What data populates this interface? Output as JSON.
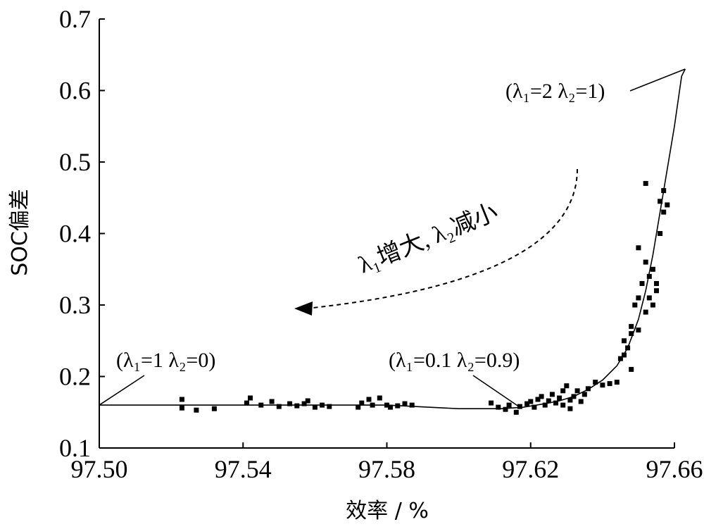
{
  "chart_data": {
    "type": "scatter",
    "xlabel": "效率 / %",
    "ylabel": "SOC偏差",
    "xlim": [
      97.5,
      97.66
    ],
    "ylim": [
      0.1,
      0.7
    ],
    "xticks": [
      "97.50",
      "97.54",
      "97.58",
      "97.62",
      "97.66"
    ],
    "xtick_values": [
      97.5,
      97.54,
      97.58,
      97.62,
      97.66
    ],
    "yticks": [
      "0.1",
      "0.2",
      "0.3",
      "0.4",
      "0.5",
      "0.6",
      "0.7"
    ],
    "ytick_values": [
      0.1,
      0.2,
      0.3,
      0.4,
      0.5,
      0.6,
      0.7
    ],
    "grid": false,
    "series": [
      {
        "kind": "points",
        "points": [
          [
            97.523,
            0.168
          ],
          [
            97.523,
            0.156
          ],
          [
            97.527,
            0.153
          ],
          [
            97.532,
            0.155
          ],
          [
            97.541,
            0.163
          ],
          [
            97.542,
            0.17
          ],
          [
            97.545,
            0.16
          ],
          [
            97.548,
            0.165
          ],
          [
            97.55,
            0.158
          ],
          [
            97.553,
            0.162
          ],
          [
            97.555,
            0.159
          ],
          [
            97.557,
            0.162
          ],
          [
            97.558,
            0.166
          ],
          [
            97.56,
            0.157
          ],
          [
            97.562,
            0.16
          ],
          [
            97.564,
            0.158
          ],
          [
            97.572,
            0.157
          ],
          [
            97.573,
            0.163
          ],
          [
            97.575,
            0.168
          ],
          [
            97.576,
            0.16
          ],
          [
            97.578,
            0.17
          ],
          [
            97.58,
            0.16
          ],
          [
            97.581,
            0.157
          ],
          [
            97.583,
            0.159
          ],
          [
            97.585,
            0.162
          ],
          [
            97.587,
            0.16
          ],
          [
            97.609,
            0.163
          ],
          [
            97.611,
            0.157
          ],
          [
            97.613,
            0.154
          ],
          [
            97.614,
            0.16
          ],
          [
            97.616,
            0.15
          ],
          [
            97.617,
            0.158
          ],
          [
            97.619,
            0.162
          ],
          [
            97.62,
            0.165
          ],
          [
            97.621,
            0.157
          ],
          [
            97.622,
            0.168
          ],
          [
            97.623,
            0.172
          ],
          [
            97.624,
            0.16
          ],
          [
            97.625,
            0.166
          ],
          [
            97.626,
            0.175
          ],
          [
            97.627,
            0.163
          ],
          [
            97.628,
            0.17
          ],
          [
            97.629,
            0.18
          ],
          [
            97.629,
            0.16
          ],
          [
            97.63,
            0.187
          ],
          [
            97.631,
            0.167
          ],
          [
            97.631,
            0.155
          ],
          [
            97.632,
            0.172
          ],
          [
            97.633,
            0.18
          ],
          [
            97.634,
            0.165
          ],
          [
            97.635,
            0.175
          ],
          [
            97.636,
            0.183
          ],
          [
            97.638,
            0.192
          ],
          [
            97.64,
            0.188
          ],
          [
            97.642,
            0.19
          ],
          [
            97.644,
            0.192
          ],
          [
            97.645,
            0.225
          ],
          [
            97.646,
            0.25
          ],
          [
            97.647,
            0.24
          ],
          [
            97.648,
            0.21
          ],
          [
            97.648,
            0.27
          ],
          [
            97.649,
            0.3
          ],
          [
            97.65,
            0.265
          ],
          [
            97.65,
            0.31
          ],
          [
            97.651,
            0.33
          ],
          [
            97.652,
            0.36
          ],
          [
            97.652,
            0.29
          ],
          [
            97.653,
            0.34
          ],
          [
            97.654,
            0.3
          ],
          [
            97.654,
            0.35
          ],
          [
            97.655,
            0.33
          ],
          [
            97.656,
            0.4
          ],
          [
            97.656,
            0.445
          ],
          [
            97.657,
            0.43
          ],
          [
            97.657,
            0.46
          ],
          [
            97.658,
            0.44
          ],
          [
            97.652,
            0.47
          ],
          [
            97.65,
            0.38
          ],
          [
            97.648,
            0.26
          ],
          [
            97.646,
            0.23
          ],
          [
            97.653,
            0.31
          ],
          [
            97.655,
            0.32
          ]
        ]
      },
      {
        "kind": "fitted-line",
        "points": [
          [
            97.5,
            0.16
          ],
          [
            97.51,
            0.16
          ],
          [
            97.54,
            0.16
          ],
          [
            97.58,
            0.16
          ],
          [
            97.6,
            0.155
          ],
          [
            97.612,
            0.155
          ],
          [
            97.618,
            0.157
          ],
          [
            97.624,
            0.162
          ],
          [
            97.628,
            0.166
          ],
          [
            97.632,
            0.172
          ],
          [
            97.636,
            0.182
          ],
          [
            97.64,
            0.195
          ],
          [
            97.644,
            0.215
          ],
          [
            97.647,
            0.24
          ],
          [
            97.65,
            0.28
          ],
          [
            97.652,
            0.32
          ],
          [
            97.654,
            0.37
          ],
          [
            97.656,
            0.43
          ],
          [
            97.658,
            0.49
          ],
          [
            97.66,
            0.55
          ],
          [
            97.662,
            0.62
          ],
          [
            97.663,
            0.63
          ]
        ]
      }
    ],
    "annotations": [
      {
        "text": "(λ₁=2 λ₂=1)",
        "point": [
          97.663,
          0.63
        ]
      },
      {
        "text": "(λ₁=0.1 λ₂=0.9)",
        "point": [
          97.617,
          0.157
        ]
      },
      {
        "text": "(λ₁=1 λ₂=0)",
        "point": [
          97.5,
          0.16
        ]
      }
    ],
    "trend_arrow_label": "λ₁增大, λ₂减小"
  }
}
